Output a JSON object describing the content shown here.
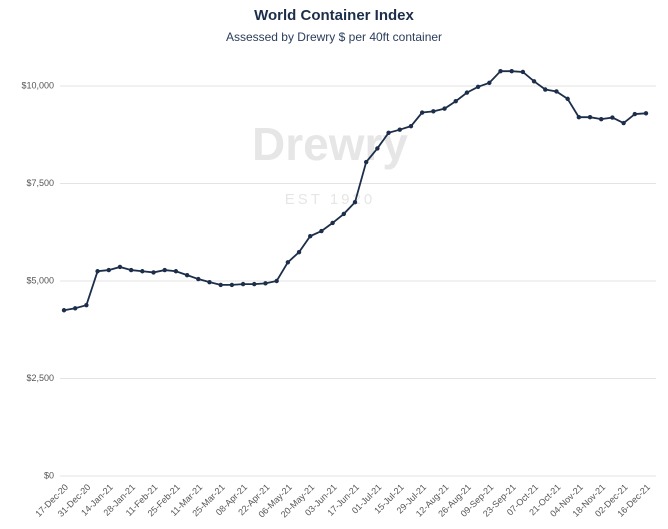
{
  "chart_data": {
    "type": "line",
    "title": "World Container Index",
    "subtitle": "Assessed by Drewry  $ per 40ft container",
    "watermark": [
      "Drewry",
      "EST 1920"
    ],
    "categories": [
      "17-Dec-20",
      null,
      "31-Dec-20",
      null,
      "14-Jan-21",
      null,
      "28-Jan-21",
      null,
      "11-Feb-21",
      null,
      "25-Feb-21",
      null,
      "11-Mar-21",
      null,
      "25-Mar-21",
      null,
      "08-Apr-21",
      null,
      "22-Apr-21",
      null,
      "06-May-21",
      null,
      "20-May-21",
      null,
      "03-Jun-21",
      null,
      "17-Jun-21",
      null,
      "01-Jul-21",
      null,
      "15-Jul-21",
      null,
      "29-Jul-21",
      null,
      "12-Aug-21",
      null,
      "26-Aug-21",
      null,
      "09-Sep-21",
      null,
      "23-Sep-21",
      null,
      "07-Oct-21",
      null,
      "21-Oct-21",
      null,
      "04-Nov-21",
      null,
      "18-Nov-21",
      null,
      "02-Dec-21",
      null,
      "16-Dec-21"
    ],
    "values": [
      4250,
      4300,
      4380,
      5250,
      5280,
      5360,
      5280,
      5250,
      5220,
      5280,
      5250,
      5150,
      5050,
      4970,
      4900,
      4900,
      4920,
      4920,
      4940,
      5000,
      5480,
      5740,
      6150,
      6280,
      6490,
      6720,
      7020,
      8050,
      8400,
      8800,
      8880,
      8970,
      9320,
      9350,
      9420,
      9610,
      9830,
      9980,
      10080,
      10380,
      10380,
      10360,
      10120,
      9910,
      9860,
      9670,
      9200,
      9200,
      9150,
      9190,
      9050,
      9280,
      9300
    ],
    "color": "#1c2e4a",
    "ylim": [
      0,
      10600
    ],
    "yticks": [
      {
        "value": 0,
        "label": "$0"
      },
      {
        "value": 2500,
        "label": "$2,500"
      },
      {
        "value": 5000,
        "label": "$5,000"
      },
      {
        "value": 7500,
        "label": "$7,500"
      },
      {
        "value": 10000,
        "label": "$10,000"
      }
    ],
    "grid": true
  }
}
